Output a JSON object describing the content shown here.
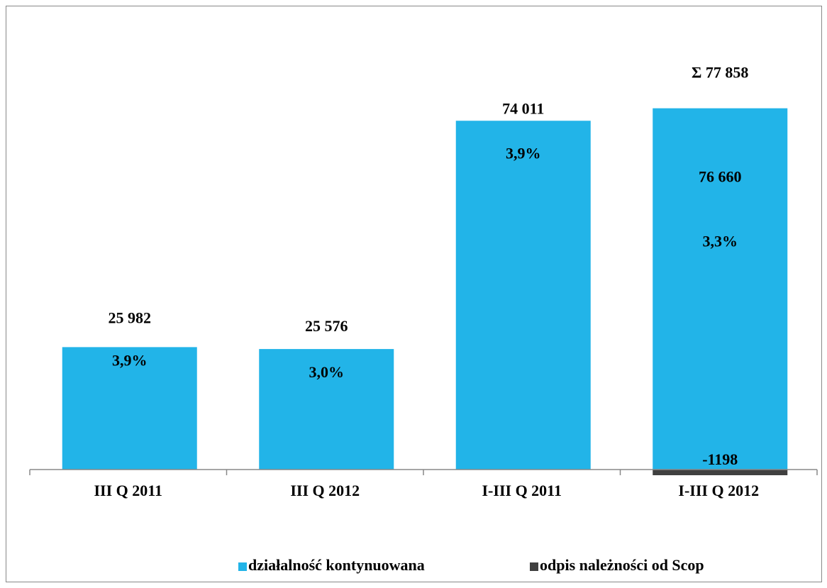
{
  "chart_data": {
    "type": "bar",
    "categories": [
      "III Q 2011",
      "III Q 2012",
      "I-III Q 2011",
      "I-III Q 2012"
    ],
    "series": [
      {
        "name": "działalność kontynuowana",
        "color": "#22b4e8",
        "values": [
          25982,
          25576,
          74011,
          76660
        ],
        "value_labels": [
          "25 982",
          "25 576",
          "74 011",
          "76 660"
        ]
      },
      {
        "name": "odpis należności od Scop",
        "color": "#404040",
        "values": [
          null,
          null,
          null,
          -1198
        ]
      }
    ],
    "percent_labels": [
      "3,9%",
      "3,0%",
      "3,9%",
      "3,3%"
    ],
    "total_label": "Σ 77 858",
    "ylim": [
      -1500,
      90000
    ],
    "legend": "bottom"
  }
}
